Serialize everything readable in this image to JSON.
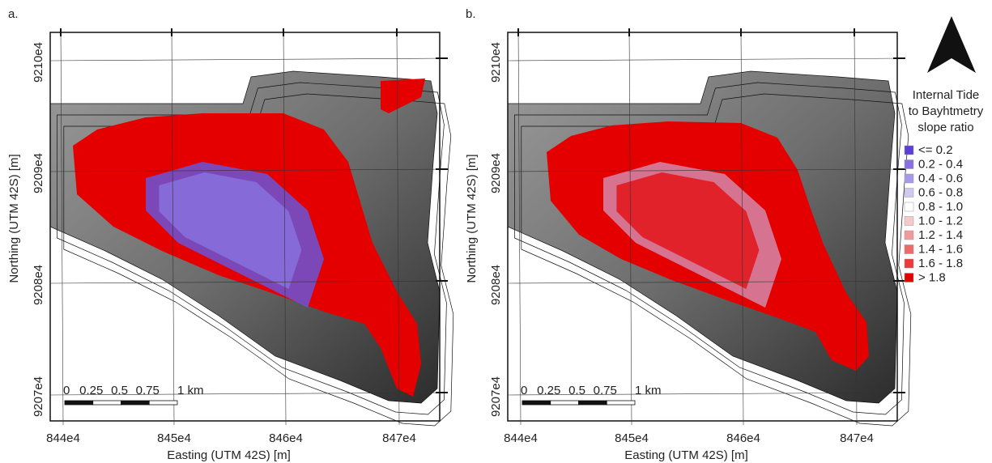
{
  "panels": [
    {
      "label": "a.",
      "x_axis_label": "Easting (UTM 42S) [m]",
      "y_axis_label": "Northing (UTM 42S) [m]",
      "x_ticks": [
        "844e4",
        "845e4",
        "846e4",
        "847e4"
      ],
      "y_ticks": [
        "9210e4",
        "9209e4",
        "9208e4",
        "9207e4"
      ],
      "scale_bar": [
        "0",
        "0.25",
        "0.5",
        "0.75",
        "1 km"
      ]
    },
    {
      "label": "b.",
      "x_axis_label": "Easting (UTM 42S) [m]",
      "y_axis_label": "Northing (UTM 42S) [m]",
      "x_ticks": [
        "844e4",
        "845e4",
        "846e4",
        "847e4"
      ],
      "y_ticks": [
        "9210e4",
        "9209e4",
        "9208e4",
        "9207e4"
      ],
      "scale_bar": [
        "0",
        "0.25",
        "0.5",
        "0.75",
        "1 km"
      ]
    }
  ],
  "legend": {
    "title_lines": [
      "Internal Tide",
      "to Bayhtmetry",
      "slope ratio"
    ],
    "items": [
      {
        "label": "<= 0.2",
        "color": "#5b3fd6"
      },
      {
        "label": "0.2 - 0.4",
        "color": "#8a70e0"
      },
      {
        "label": "0.4 - 0.6",
        "color": "#a898e8"
      },
      {
        "label": "0.6 - 0.8",
        "color": "#d2c9f3"
      },
      {
        "label": "0.8 - 1.0",
        "color": "#ffffff"
      },
      {
        "label": "1.0 - 1.2",
        "color": "#f6caca"
      },
      {
        "label": "1.2 - 1.4",
        "color": "#f29a9a"
      },
      {
        "label": "1.4 - 1.6",
        "color": "#ee6a6a"
      },
      {
        "label": "1.6 - 1.8",
        "color": "#ea3a3a"
      },
      {
        "label": "> 1.8",
        "color": "#e50000"
      }
    ]
  }
}
